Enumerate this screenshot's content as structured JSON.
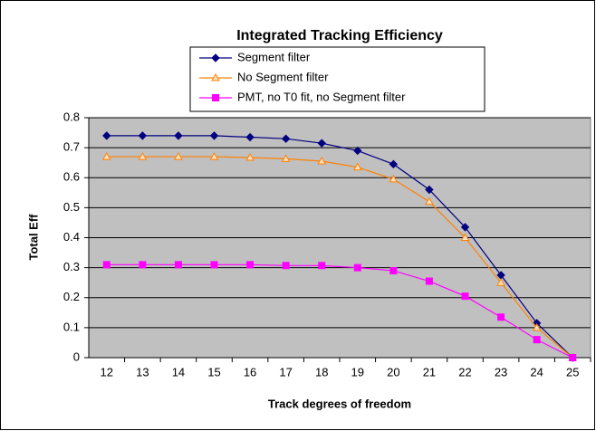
{
  "chart_data": {
    "type": "line",
    "title": "Integrated Tracking Efficiency",
    "x_label": "Track degrees of freedom",
    "y_label": "Total Eff",
    "categories": [
      "12",
      "13",
      "14",
      "15",
      "16",
      "17",
      "18",
      "19",
      "20",
      "21",
      "22",
      "23",
      "24",
      "25"
    ],
    "series": [
      {
        "name": "Segment filter",
        "color": "#000080",
        "marker": "diamond",
        "values": [
          0.74,
          0.74,
          0.74,
          0.74,
          0.735,
          0.73,
          0.715,
          0.69,
          0.645,
          0.56,
          0.435,
          0.275,
          0.115,
          0
        ]
      },
      {
        "name": "No Segment filter",
        "color": "#ff8000",
        "marker": "triangle",
        "values": [
          0.67,
          0.67,
          0.67,
          0.67,
          0.667,
          0.663,
          0.655,
          0.635,
          0.595,
          0.52,
          0.4,
          0.25,
          0.1,
          0
        ]
      },
      {
        "name": "PMT, no T0 fit, no Segment filter",
        "color": "#ff00ff",
        "marker": "square",
        "values": [
          0.31,
          0.31,
          0.31,
          0.31,
          0.31,
          0.307,
          0.307,
          0.3,
          0.29,
          0.255,
          0.205,
          0.135,
          0.06,
          0
        ]
      }
    ],
    "ylim": [
      0,
      0.8
    ],
    "yticks": [
      0,
      0.1,
      0.2,
      0.3,
      0.4,
      0.5,
      0.6,
      0.7,
      0.8
    ],
    "grid": true
  }
}
